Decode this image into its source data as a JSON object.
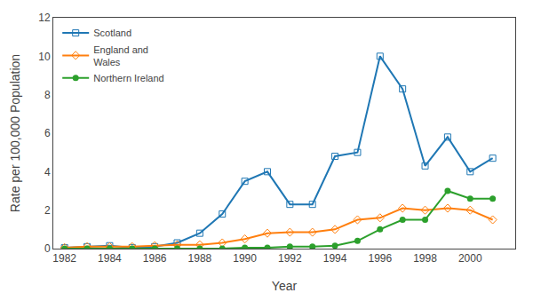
{
  "chart_data": {
    "type": "line",
    "x": [
      1982,
      1983,
      1984,
      1985,
      1986,
      1987,
      1988,
      1989,
      1990,
      1991,
      1992,
      1993,
      1994,
      1995,
      1996,
      1997,
      1998,
      1999,
      2000,
      2001
    ],
    "series": [
      {
        "name": "Scotland",
        "marker": "square-open",
        "values": [
          0.05,
          0.1,
          0.15,
          0.05,
          0.1,
          0.3,
          0.8,
          1.8,
          3.5,
          4.0,
          2.3,
          2.3,
          4.8,
          5.0,
          10.0,
          8.3,
          4.3,
          5.8,
          4.0,
          4.7
        ]
      },
      {
        "name": "England and\nWales",
        "marker": "diamond-open",
        "values": [
          0.05,
          0.1,
          0.1,
          0.1,
          0.15,
          0.2,
          0.2,
          0.3,
          0.5,
          0.8,
          0.85,
          0.85,
          1.0,
          1.5,
          1.6,
          2.1,
          2.0,
          2.1,
          2.0,
          1.5
        ]
      },
      {
        "name": "Northern Ireland",
        "marker": "circle",
        "values": [
          0.0,
          0.0,
          0.0,
          0.0,
          0.0,
          0.0,
          0.0,
          0.0,
          0.05,
          0.05,
          0.1,
          0.1,
          0.15,
          0.4,
          1.0,
          1.5,
          1.5,
          3.0,
          2.6,
          2.6
        ]
      }
    ],
    "xlabel": "Year",
    "ylabel": "Rate per 100,000 Population",
    "xlim": [
      1981.5,
      2002
    ],
    "xticks": [
      1982,
      1984,
      1986,
      1988,
      1990,
      1992,
      1994,
      1996,
      1998,
      2000
    ],
    "ylim": [
      0,
      12
    ],
    "yticks": [
      0,
      2,
      4,
      6,
      8,
      10,
      12
    ],
    "grid": false,
    "legend": "upper left"
  }
}
